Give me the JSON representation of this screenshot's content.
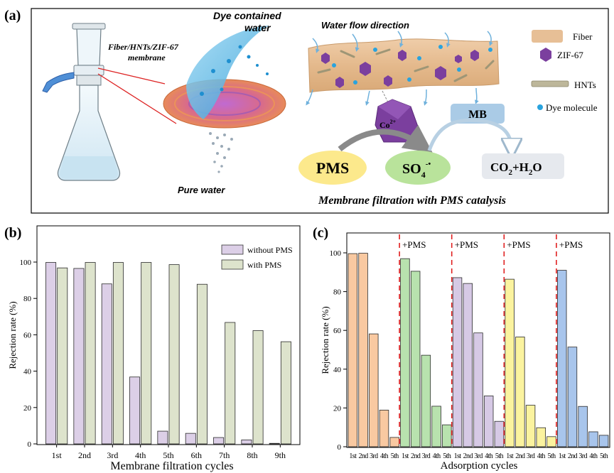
{
  "panel_a": {
    "label": "(a)",
    "membrane_label_1": "Fiber/HNTs/ZIF-67",
    "membrane_label_2": "membrane",
    "dye_label_1": "Dye contained",
    "dye_label_2": "water",
    "pure_water": "Pure water",
    "flow_direction": "Water flow direction",
    "co_label": "Co",
    "co_sup": "2+",
    "pms": "PMS",
    "so4": "SO",
    "so4_sub": "4",
    "so4_sup": "-•",
    "mb": "MB",
    "co2": "CO",
    "co2_sub": "2",
    "plus_h2o": "+H",
    "h2o_sub": "2",
    "h2o_o": "O",
    "caption": "Membrane filtration with PMS catalysis",
    "legend": [
      "Fiber",
      "ZIF-67",
      "HNTs",
      "Dye molecule"
    ],
    "colors": {
      "fiber": "#e7bf96",
      "zif": "#7b3f9e",
      "hnt": "#bdb79a",
      "dye": "#29a3de",
      "pms_ellipse": "#fce98c",
      "so4_ellipse": "#b9e39b",
      "co2_box": "#e6e9ee",
      "mb_box": "#aacbe6",
      "flask": "#d9edf6"
    }
  },
  "chart_data": [
    {
      "type": "bar",
      "panel": "(b)",
      "xlabel": "Membrane filtration cycles",
      "ylabel": "Rejection rate (%)",
      "ylim": [
        0,
        100
      ],
      "yticks": [
        0,
        20,
        40,
        60,
        80,
        100
      ],
      "categories": [
        "1st",
        "2nd",
        "3rd",
        "4th",
        "5th",
        "6th",
        "7th",
        "8th",
        "9th"
      ],
      "series": [
        {
          "name": "without PMS",
          "color": "#dccfe7",
          "values": [
            99.8,
            96.5,
            88.0,
            36.8,
            7.0,
            5.8,
            3.5,
            2.2,
            0.3
          ]
        },
        {
          "name": "with PMS",
          "color": "#dde3cc",
          "values": [
            96.8,
            99.8,
            99.8,
            99.8,
            98.6,
            87.8,
            66.8,
            62.3,
            56.2
          ]
        }
      ],
      "legend_position": "top-right"
    },
    {
      "type": "bar",
      "panel": "(c)",
      "xlabel": "Adsorption cycles",
      "ylabel": "Rejection rate (%)",
      "ylim": [
        0,
        105
      ],
      "yticks": [
        0,
        20,
        40,
        60,
        80,
        100
      ],
      "annotation": "+PMS",
      "groups": [
        {
          "color": "#f9c9a1",
          "categories": [
            "1st",
            "2nd",
            "3rd",
            "4th",
            "5th"
          ],
          "values": [
            99.6,
            99.8,
            58.2,
            18.9,
            4.8
          ]
        },
        {
          "color": "#b8e2ae",
          "categories": [
            "1st",
            "2nd",
            "3rd",
            "4th",
            "5th"
          ],
          "values": [
            97.0,
            90.5,
            47.2,
            20.9,
            11.3
          ]
        },
        {
          "color": "#d6c9e5",
          "categories": [
            "1st",
            "2nd",
            "3rd",
            "4th",
            "5th"
          ],
          "values": [
            87.2,
            84.2,
            58.7,
            26.2,
            13.1
          ]
        },
        {
          "color": "#fbf39f",
          "categories": [
            "1st",
            "2nd",
            "3rd",
            "4th",
            "5th"
          ],
          "values": [
            86.4,
            56.6,
            21.4,
            9.8,
            5.2
          ]
        },
        {
          "color": "#a8c5ec",
          "categories": [
            "1st",
            "2nd",
            "3rd",
            "4th",
            "5th"
          ],
          "values": [
            91.0,
            51.4,
            20.8,
            7.7,
            5.9
          ]
        }
      ]
    }
  ]
}
